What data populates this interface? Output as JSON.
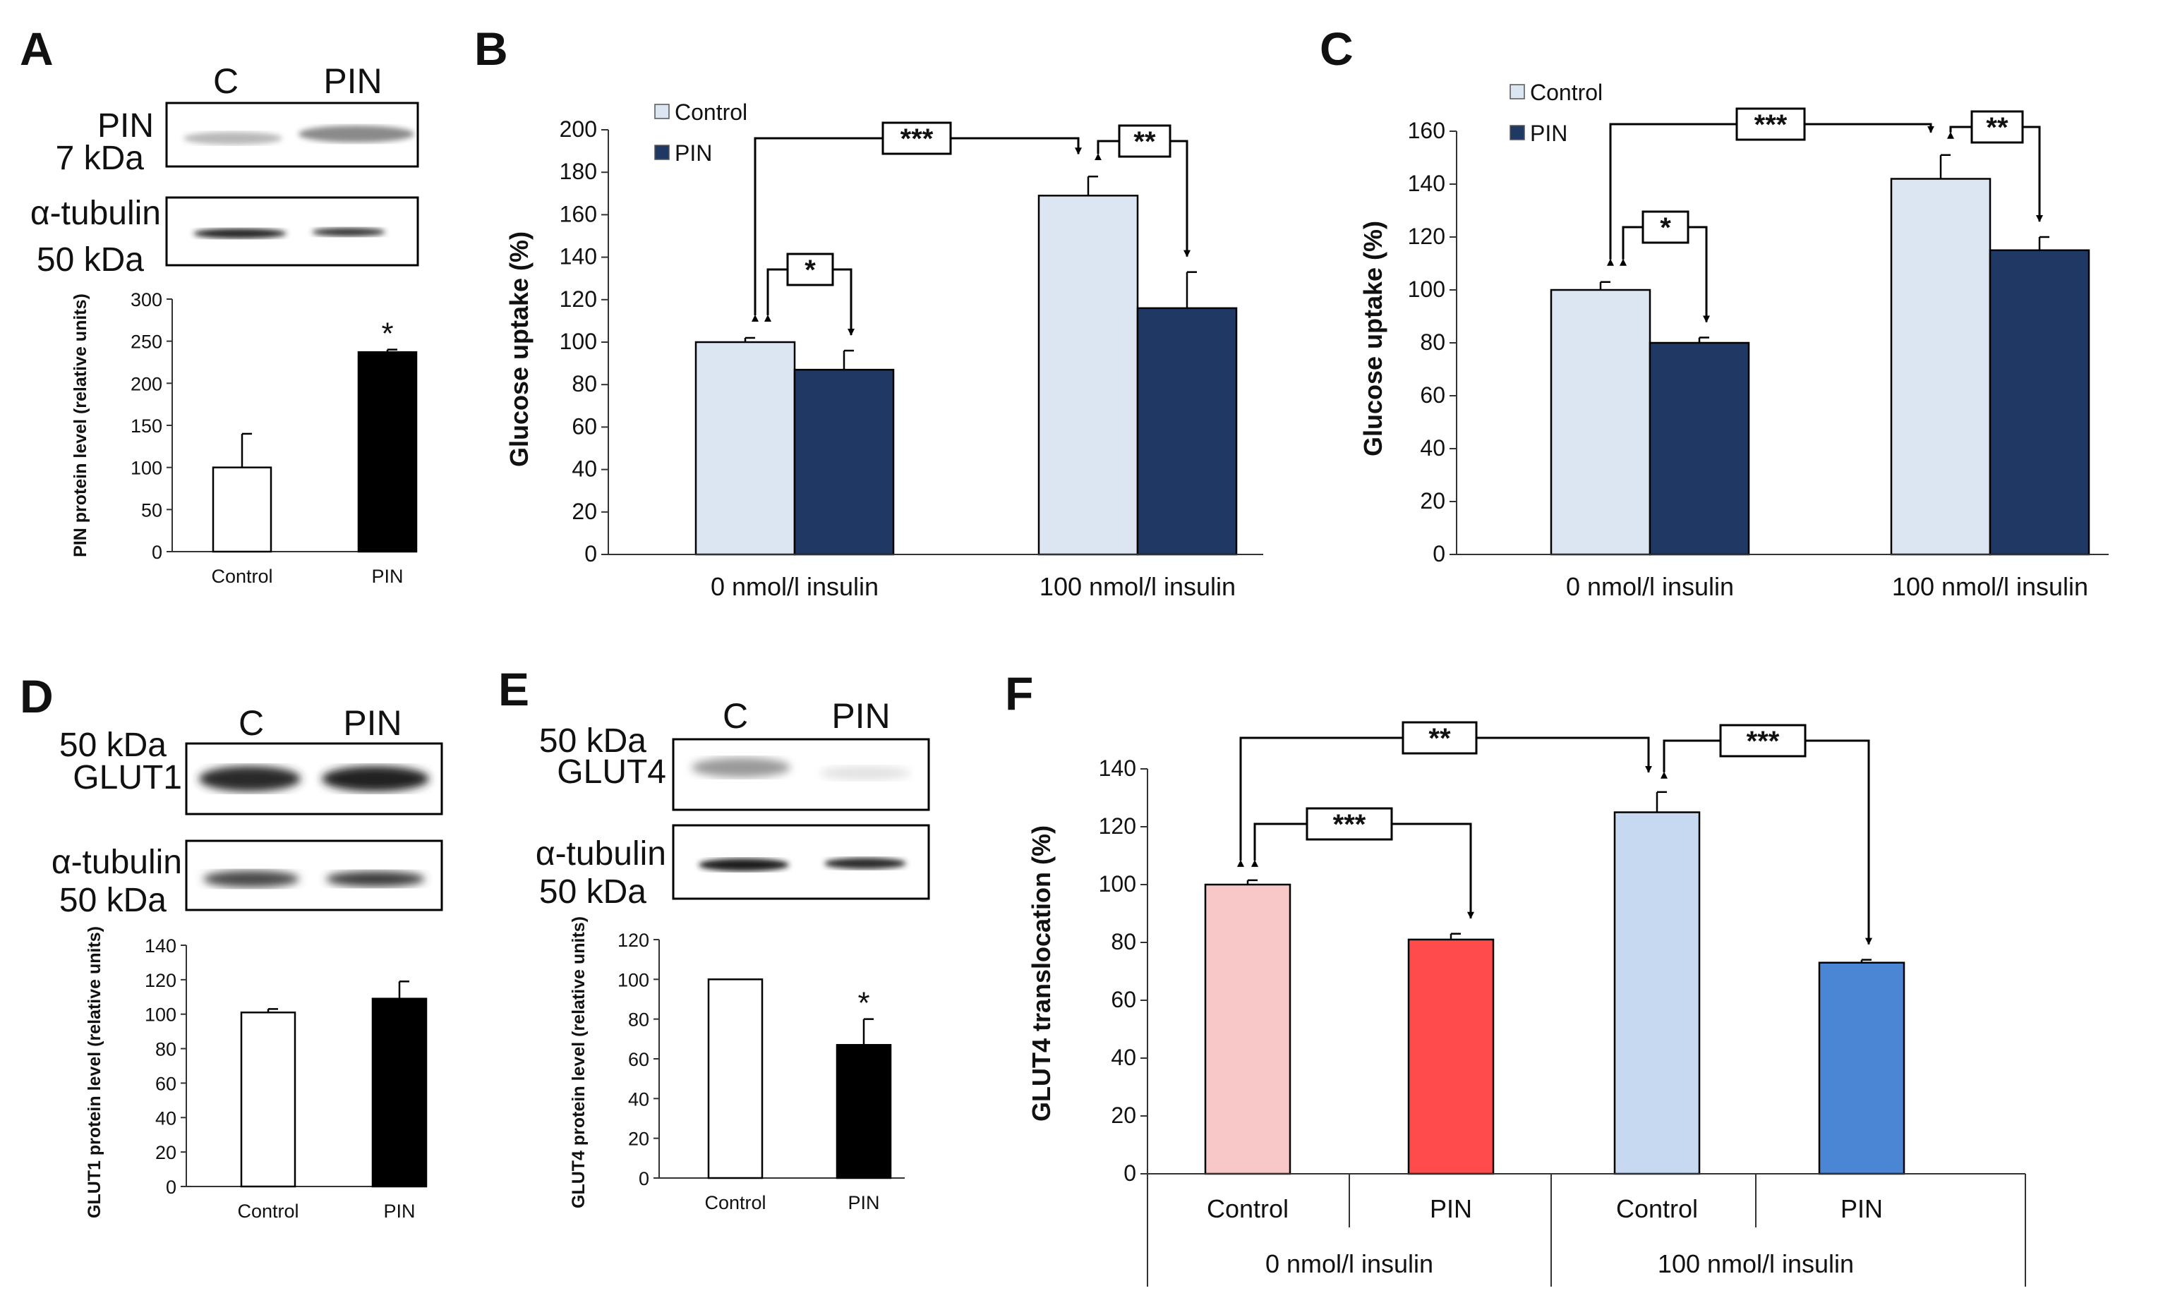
{
  "figure": {
    "panel_letters": [
      "A",
      "B",
      "C",
      "D",
      "E",
      "F"
    ]
  },
  "blots": {
    "A": {
      "lanes": [
        "C",
        "PIN"
      ],
      "rows": [
        {
          "name": "PIN",
          "marker": "7 kDa"
        },
        {
          "name": "α-tubulin",
          "marker": "50 kDa"
        }
      ]
    },
    "D": {
      "lanes": [
        "C",
        "PIN"
      ],
      "rows": [
        {
          "name": "GLUT1",
          "marker": "50 kDa"
        },
        {
          "name": "α-tubulin",
          "marker": "50 kDa"
        }
      ]
    },
    "E": {
      "lanes": [
        "C",
        "PIN"
      ],
      "rows": [
        {
          "name": "GLUT4",
          "marker": "50 kDa"
        },
        {
          "name": "α-tubulin",
          "marker": "50 kDa"
        }
      ]
    }
  },
  "colors": {
    "control_blue": "#dce6f2",
    "pin_navy": "#1f3864",
    "white_bar": "#ffffff",
    "black_bar": "#000000",
    "f_control_pink": "#f8c8c8",
    "f_pin_red": "#ff4b4b",
    "f_control_blue": "#c6d9f1",
    "f_pin_blue": "#4a86d4"
  },
  "chart_data": [
    {
      "panel": "A",
      "type": "bar",
      "categories": [
        "Control",
        "PIN"
      ],
      "values": [
        100,
        237
      ],
      "errors": [
        40,
        3
      ],
      "significance": [
        "",
        "*"
      ],
      "ylabel": "PIN protein level (relative units)",
      "ylim": [
        0,
        300
      ],
      "yticks": [
        "0",
        "50",
        "100",
        "150",
        "200",
        "250",
        "300"
      ]
    },
    {
      "panel": "B",
      "type": "bar",
      "groups": [
        "0 nmol/l insulin",
        "100 nmol/l insulin"
      ],
      "series": [
        {
          "name": "Control",
          "values": [
            100,
            169
          ],
          "errors": [
            2,
            9
          ]
        },
        {
          "name": "PIN",
          "values": [
            87,
            116
          ],
          "errors": [
            9,
            17
          ]
        }
      ],
      "ylabel": "Glucose uptake (%)",
      "ylim": [
        0,
        200
      ],
      "yticks": [
        "0",
        "20",
        "40",
        "60",
        "80",
        "100",
        "120",
        "140",
        "160",
        "180",
        "200"
      ],
      "legend": [
        "Control",
        "PIN"
      ],
      "legend_position": "top-left",
      "brackets": [
        "***",
        "**",
        "*"
      ]
    },
    {
      "panel": "C",
      "type": "bar",
      "groups": [
        "0 nmol/l insulin",
        "100 nmol/l insulin"
      ],
      "series": [
        {
          "name": "Control",
          "values": [
            100,
            142
          ],
          "errors": [
            3,
            9
          ]
        },
        {
          "name": "PIN",
          "values": [
            80,
            115
          ],
          "errors": [
            2,
            5
          ]
        }
      ],
      "ylabel": "Glucose uptake (%)",
      "ylim": [
        0,
        160
      ],
      "yticks": [
        "0",
        "20",
        "40",
        "60",
        "80",
        "100",
        "120",
        "140",
        "160"
      ],
      "legend": [
        "Control",
        "PIN"
      ],
      "legend_position": "top-left",
      "brackets": [
        "***",
        "**",
        "*"
      ]
    },
    {
      "panel": "D",
      "type": "bar",
      "categories": [
        "Control",
        "PIN"
      ],
      "values": [
        101,
        109
      ],
      "errors": [
        2,
        10
      ],
      "significance": [
        "",
        ""
      ],
      "ylabel": "GLUT1 protein level (relative units)",
      "ylim": [
        0,
        140
      ],
      "yticks": [
        "0",
        "20",
        "40",
        "60",
        "80",
        "100",
        "120",
        "140"
      ]
    },
    {
      "panel": "E",
      "type": "bar",
      "categories": [
        "Control",
        "PIN"
      ],
      "values": [
        100,
        67
      ],
      "errors": [
        0,
        13
      ],
      "significance": [
        "",
        "*"
      ],
      "ylabel": "GLUT4 protein level (relative units)",
      "ylim": [
        0,
        120
      ],
      "yticks": [
        "0",
        "20",
        "40",
        "60",
        "80",
        "100",
        "120"
      ]
    },
    {
      "panel": "F",
      "type": "bar",
      "categories": [
        "Control",
        "PIN",
        "Control",
        "PIN"
      ],
      "groups": [
        "0 nmol/l insulin",
        "100 nmol/l insulin"
      ],
      "values": [
        100,
        81,
        125,
        73
      ],
      "errors": [
        1.5,
        2,
        7,
        1
      ],
      "ylabel": "GLUT4 translocation (%)",
      "ylim": [
        0,
        140
      ],
      "yticks": [
        "0",
        "20",
        "40",
        "60",
        "80",
        "100",
        "120",
        "140"
      ],
      "brackets": [
        "**",
        "***",
        "***"
      ]
    }
  ]
}
